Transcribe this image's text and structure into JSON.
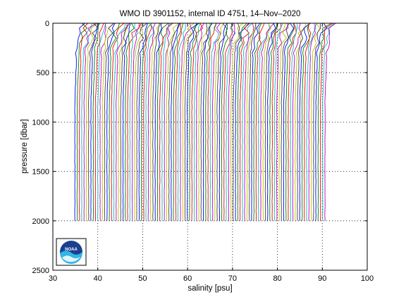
{
  "chart_data": {
    "type": "line",
    "title": "WMO ID 3901152, internal ID 4751, 14–Nov–2020",
    "xlabel": "salinity [psu]",
    "ylabel": "pressure [dbar]",
    "xlim": [
      30,
      100
    ],
    "ylim": [
      0,
      2500
    ],
    "y_reversed": true,
    "grid": true,
    "grid_style": "dotted",
    "xticks": [
      30,
      40,
      50,
      60,
      70,
      80,
      90,
      100
    ],
    "yticks": [
      0,
      500,
      1000,
      1500,
      2000,
      2500
    ],
    "profile_series": {
      "description_values": "Profiles offset successively in salinity",
      "count": 110,
      "first_offset": 34.9,
      "last_offset": 90.6,
      "surface_pressure": 0,
      "bottom_pressure": 2000
    },
    "logo": {
      "name": "noaa-logo",
      "text": "NOAA"
    },
    "colors": {
      "series": [
        "#0000ff",
        "#008000",
        "#ff0000",
        "#00bfbf",
        "#bf00bf",
        "#bfbf00",
        "#404040"
      ]
    }
  }
}
